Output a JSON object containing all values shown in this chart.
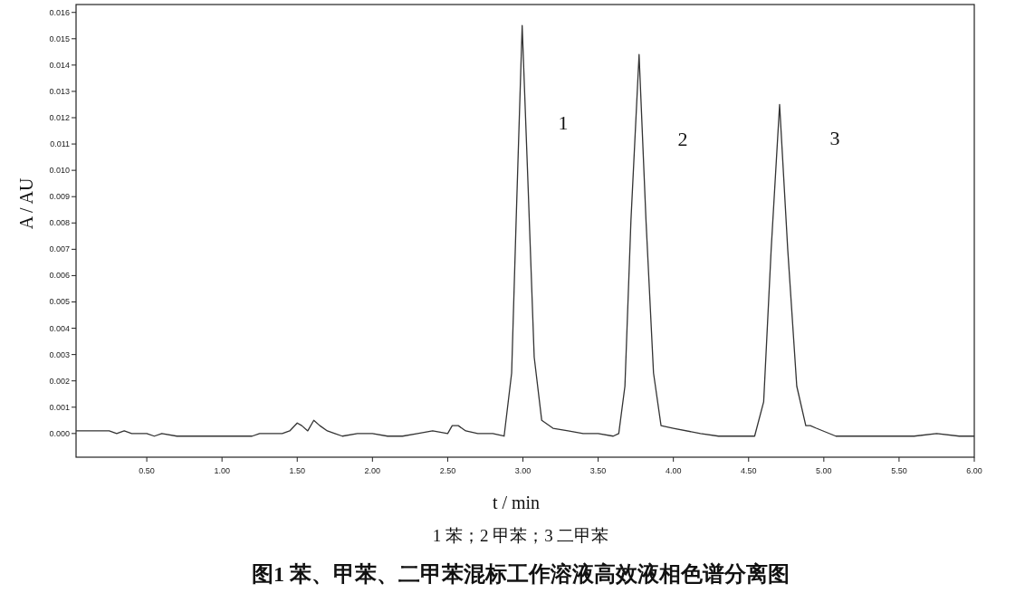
{
  "chart_data": {
    "type": "line",
    "title": "图1 苯、甲苯、二甲苯混标工作溶液高效液相色谱分离图",
    "xlabel": "t / min",
    "ylabel": "A / AU",
    "annotations": [
      "1",
      "2",
      "3",
      "1 苯；2 甲苯；3 二甲苯"
    ],
    "x": [
      0.03,
      0.1,
      0.2,
      0.25,
      0.3,
      0.35,
      0.4,
      0.5,
      0.55,
      0.6,
      0.7,
      0.8,
      0.9,
      1.0,
      1.1,
      1.2,
      1.25,
      1.3,
      1.4,
      1.45,
      1.5,
      1.53,
      1.57,
      1.61,
      1.65,
      1.7,
      1.75,
      1.8,
      1.9,
      2.0,
      2.1,
      2.2,
      2.3,
      2.4,
      2.5,
      2.53,
      2.57,
      2.62,
      2.7,
      2.8,
      2.875,
      2.925,
      2.955,
      2.995,
      3.035,
      3.075,
      3.125,
      3.2,
      3.3,
      3.4,
      3.5,
      3.6,
      3.637,
      3.678,
      3.718,
      3.772,
      3.818,
      3.868,
      3.918,
      4.0,
      4.18,
      4.3,
      4.4,
      4.54,
      4.6,
      4.65,
      4.706,
      4.76,
      4.82,
      4.88,
      4.91,
      4.95,
      5.08,
      5.2,
      5.4,
      5.5,
      5.6,
      5.75,
      5.9,
      6.0
    ],
    "series": [
      {
        "color": "#333333",
        "values": [
          0.0001,
          0.0001,
          0.0001,
          0.0001,
          0.0,
          0.0001,
          0.0,
          0.0,
          -0.0001,
          0.0,
          -0.0001,
          -0.0001,
          -0.0001,
          -0.0001,
          -0.0001,
          -0.0001,
          0.0,
          0.0,
          0.0,
          0.0001,
          0.0004,
          0.0003,
          0.0001,
          0.0005,
          0.0003,
          0.0001,
          0.0,
          -0.0001,
          0.0,
          0.0,
          -0.0001,
          -0.0001,
          0.0,
          0.0001,
          0.0,
          0.0003,
          0.0003,
          0.0001,
          0.0,
          0.0,
          -0.0001,
          0.0023,
          0.0081,
          0.0155,
          0.0093,
          0.0029,
          0.0005,
          0.0002,
          0.0001,
          0.0,
          0.0,
          -0.0001,
          0.0,
          0.0018,
          0.0081,
          0.0144,
          0.0081,
          0.0023,
          0.0003,
          0.0002,
          0.0,
          -0.0001,
          -0.0001,
          -0.0001,
          0.0012,
          0.007,
          0.0125,
          0.007,
          0.0018,
          0.0003,
          0.0003,
          0.0002,
          -0.0001,
          -0.0001,
          -0.0001,
          -0.0001,
          -0.0001,
          0.0,
          -0.0001,
          -0.0001
        ]
      }
    ],
    "xlim": [
      0.03,
      6.0
    ],
    "ylim": [
      -0.0009,
      0.0163
    ],
    "xticks": [
      {
        "value": 0.5,
        "label": "0.50"
      },
      {
        "value": 1,
        "label": "1.00"
      },
      {
        "value": 1.5,
        "label": "1.50"
      },
      {
        "value": 2,
        "label": "2.00"
      },
      {
        "value": 2.5,
        "label": "2.50"
      },
      {
        "value": 3,
        "label": "3.00"
      },
      {
        "value": 3.5,
        "label": "3.50"
      },
      {
        "value": 4,
        "label": "4.00"
      },
      {
        "value": 4.5,
        "label": "4.50"
      },
      {
        "value": 5,
        "label": "5.00"
      },
      {
        "value": 5.5,
        "label": "5.50"
      },
      {
        "value": 6,
        "label": "6.00"
      }
    ],
    "yticks": [
      {
        "value": 0,
        "label": "0.000"
      },
      {
        "value": 0.001,
        "label": "0.001"
      },
      {
        "value": 0.002,
        "label": "0.002"
      },
      {
        "value": 0.003,
        "label": "0.003"
      },
      {
        "value": 0.004,
        "label": "0.004"
      },
      {
        "value": 0.005,
        "label": "0.005"
      },
      {
        "value": 0.006,
        "label": "0.006"
      },
      {
        "value": 0.007,
        "label": "0.007"
      },
      {
        "value": 0.008,
        "label": "0.008"
      },
      {
        "value": 0.009,
        "label": "0.009"
      },
      {
        "value": 0.01,
        "label": "0.010"
      },
      {
        "value": 0.011,
        "label": "0.011"
      },
      {
        "value": 0.012,
        "label": "0.012"
      },
      {
        "value": 0.013,
        "label": "0.013"
      },
      {
        "value": 0.014,
        "label": "0.014"
      },
      {
        "value": 0.015,
        "label": "0.015"
      },
      {
        "value": 0.016,
        "label": "0.016"
      }
    ],
    "grid": false
  }
}
